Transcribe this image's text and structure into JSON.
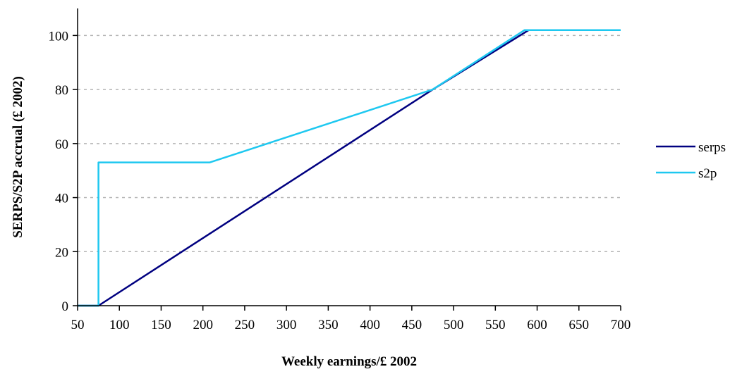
{
  "chart_data": {
    "type": "line",
    "title": "",
    "xlabel": "Weekly earnings/£ 2002",
    "ylabel": "SERPS/S2P accrual (£ 2002)",
    "xlim": [
      50,
      700
    ],
    "ylim": [
      0,
      110
    ],
    "xticks": [
      50,
      100,
      150,
      200,
      250,
      300,
      350,
      400,
      450,
      500,
      550,
      600,
      650,
      700
    ],
    "yticks": [
      0,
      20,
      40,
      60,
      80,
      100
    ],
    "grid": "horizontal dashed",
    "legend_position": "right",
    "series": [
      {
        "name": "serps",
        "color": "#000080",
        "x": [
          50,
          75,
          475,
          590,
          700
        ],
        "y": [
          0,
          0,
          80,
          102,
          102
        ]
      },
      {
        "name": "s2p",
        "color": "#1ec8f0",
        "x": [
          50,
          75,
          75,
          208,
          475,
          585,
          700
        ],
        "y": [
          0,
          0,
          53,
          53,
          80,
          102,
          102
        ]
      }
    ]
  }
}
